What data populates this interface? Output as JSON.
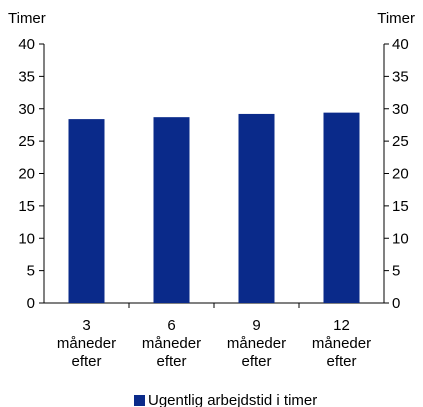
{
  "chart_data": {
    "type": "bar",
    "title": "",
    "xlabel": "",
    "ylabel": "Timer",
    "y2label": "Timer",
    "ylim": [
      0,
      40
    ],
    "yticks": [
      0,
      5,
      10,
      15,
      20,
      25,
      30,
      35,
      40
    ],
    "grid": false,
    "legend_position": "bottom",
    "categories": [
      [
        "3",
        "måneder",
        "efter"
      ],
      [
        "6",
        "måneder",
        "efter"
      ],
      [
        "9",
        "måneder",
        "efter"
      ],
      [
        "12",
        "måneder",
        "efter"
      ]
    ],
    "series": [
      {
        "name": "Ugentlig arbejdstid i timer",
        "color": "#0a2a8a",
        "values": [
          28.4,
          28.7,
          29.2,
          29.4
        ]
      }
    ]
  }
}
